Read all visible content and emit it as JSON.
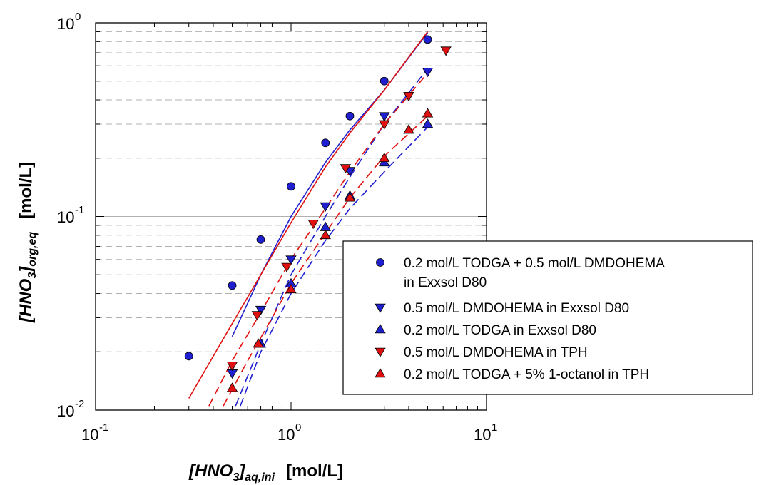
{
  "chart_data": {
    "type": "scatter",
    "xscale": "log",
    "yscale": "log",
    "xlim": [
      0.1,
      10
    ],
    "ylim": [
      0.01,
      1
    ],
    "x_ticks": [
      {
        "base": "10",
        "exp": "-1"
      },
      {
        "base": "10",
        "exp": "0"
      },
      {
        "base": "10",
        "exp": "1"
      }
    ],
    "y_ticks": [
      {
        "base": "10",
        "exp": "-2"
      },
      {
        "base": "10",
        "exp": "-1"
      },
      {
        "base": "10",
        "exp": "0"
      }
    ],
    "xlabel": {
      "main": "[HNO",
      "sub1": "3",
      "mid": "]",
      "sub2": "aq,ini",
      "unit": "[mol/L]"
    },
    "ylabel": {
      "main": "[HNO",
      "sub1": "3",
      "mid": "]",
      "sub2": "org,eq",
      "unit": "[mol/L]"
    },
    "grid": "horizontal dashed at minor y ticks, solid at 10^-1",
    "legend_position": "lower-right",
    "series": [
      {
        "name": "0.2 mol/L TODGA + 0.5 mol/L DMDOHEMA",
        "name_line2": "in Exxsol D80",
        "marker": "circle",
        "color": "#1f1fd0",
        "points": [
          [
            0.3,
            0.019
          ],
          [
            0.5,
            0.044
          ],
          [
            0.7,
            0.076
          ],
          [
            1.0,
            0.143
          ],
          [
            1.5,
            0.24
          ],
          [
            2.0,
            0.33
          ],
          [
            3.0,
            0.5
          ],
          [
            5.0,
            0.82
          ]
        ],
        "fit": [
          [
            0.5,
            0.024
          ],
          [
            0.7,
            0.05
          ],
          [
            1.0,
            0.1
          ],
          [
            1.5,
            0.19
          ],
          [
            2.0,
            0.28
          ],
          [
            3.0,
            0.45
          ],
          [
            5.0,
            0.89
          ]
        ],
        "fit_style": "solid"
      },
      {
        "name": "0.5 mol/L DMDOHEMA in Exxsol D80",
        "marker": "triangle-down",
        "color": "#1f1fd0",
        "points": [
          [
            0.5,
            0.0155
          ],
          [
            0.7,
            0.033
          ],
          [
            1.0,
            0.06
          ],
          [
            1.5,
            0.113
          ],
          [
            2.0,
            0.172
          ],
          [
            3.0,
            0.33
          ],
          [
            5.0,
            0.56
          ]
        ],
        "fit": [
          [
            0.52,
            0.0105
          ],
          [
            0.7,
            0.022
          ],
          [
            1.0,
            0.05
          ],
          [
            1.5,
            0.1
          ],
          [
            2.0,
            0.16
          ],
          [
            3.0,
            0.3
          ],
          [
            5.0,
            0.58
          ]
        ],
        "fit_style": "dashed"
      },
      {
        "name": "0.2 mol/L TODGA in Exxsol D80",
        "marker": "triangle-up",
        "color": "#1f1fd0",
        "points": [
          [
            0.7,
            0.022
          ],
          [
            1.0,
            0.045
          ],
          [
            1.5,
            0.088
          ],
          [
            2.0,
            0.128
          ],
          [
            3.0,
            0.19
          ],
          [
            5.0,
            0.3
          ]
        ],
        "fit": [
          [
            0.55,
            0.0105
          ],
          [
            0.7,
            0.02
          ],
          [
            1.0,
            0.04
          ],
          [
            1.5,
            0.075
          ],
          [
            2.0,
            0.11
          ],
          [
            3.0,
            0.17
          ],
          [
            5.0,
            0.29
          ]
        ],
        "fit_style": "dashed"
      },
      {
        "name": "0.5 mol/L DMDOHEMA in TPH",
        "marker": "triangle-down",
        "color": "#e01010",
        "points": [
          [
            0.5,
            0.017
          ],
          [
            0.67,
            0.031
          ],
          [
            0.95,
            0.055
          ],
          [
            1.3,
            0.092
          ],
          [
            1.9,
            0.178
          ],
          [
            3.0,
            0.3
          ],
          [
            4.0,
            0.42
          ],
          [
            6.2,
            0.72
          ]
        ],
        "fit": [
          [
            0.38,
            0.0105
          ],
          [
            0.5,
            0.018
          ],
          [
            0.7,
            0.032
          ],
          [
            1.0,
            0.06
          ],
          [
            1.5,
            0.11
          ],
          [
            2.0,
            0.17
          ],
          [
            3.0,
            0.3
          ],
          [
            5.0,
            0.55
          ]
        ],
        "fit_style": "dashed"
      },
      {
        "name": "0.2 mol/L TODGA + 5% 1-octanol in TPH",
        "marker": "triangle-up",
        "color": "#e01010",
        "points": [
          [
            0.5,
            0.013
          ],
          [
            0.68,
            0.022
          ],
          [
            1.0,
            0.042
          ],
          [
            1.5,
            0.08
          ],
          [
            2.0,
            0.125
          ],
          [
            3.0,
            0.2
          ],
          [
            4.0,
            0.28
          ],
          [
            5.0,
            0.34
          ]
        ],
        "fit": [
          [
            0.45,
            0.0105
          ],
          [
            0.6,
            0.018
          ],
          [
            0.8,
            0.03
          ],
          [
            1.0,
            0.045
          ],
          [
            1.5,
            0.082
          ],
          [
            2.0,
            0.125
          ],
          [
            3.0,
            0.205
          ],
          [
            5.0,
            0.33
          ]
        ],
        "fit_style": "dashed"
      },
      {
        "name": "",
        "color": "#e01010",
        "fit": [
          [
            0.3,
            0.0115
          ],
          [
            0.5,
            0.028
          ],
          [
            0.7,
            0.05
          ],
          [
            1.0,
            0.093
          ],
          [
            1.5,
            0.18
          ],
          [
            2.0,
            0.27
          ],
          [
            3.0,
            0.45
          ],
          [
            5.0,
            0.9
          ]
        ],
        "fit_style": "solid"
      }
    ]
  }
}
